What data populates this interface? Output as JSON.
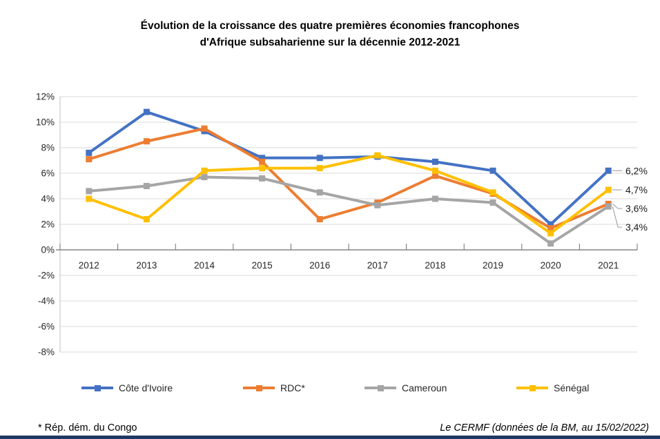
{
  "title": {
    "line1": "Évolution de la croissance des quatre premières économies francophones",
    "line2": "d'Afrique subsaharienne sur la décennie 2012-2021"
  },
  "chart_data": {
    "type": "line",
    "categories": [
      "2012",
      "2013",
      "2014",
      "2015",
      "2016",
      "2017",
      "2018",
      "2019",
      "2020",
      "2021"
    ],
    "series": [
      {
        "name": "Côte d'Ivoire",
        "color": "#4472C4",
        "values": [
          7.6,
          10.8,
          9.3,
          7.2,
          7.2,
          7.3,
          6.9,
          6.2,
          2.0,
          6.2
        ],
        "end_label": "6,2%"
      },
      {
        "name": "RDC*",
        "color": "#ED7D31",
        "values": [
          7.1,
          8.5,
          9.5,
          6.9,
          2.4,
          3.7,
          5.8,
          4.4,
          1.7,
          3.6
        ],
        "end_label": "3,6%"
      },
      {
        "name": "Cameroun",
        "color": "#A5A5A5",
        "values": [
          4.6,
          5.0,
          5.7,
          5.6,
          4.5,
          3.5,
          4.0,
          3.7,
          0.5,
          3.4
        ],
        "end_label": "3,4%"
      },
      {
        "name": "Sénégal",
        "color": "#FFC000",
        "values": [
          4.0,
          2.4,
          6.2,
          6.4,
          6.4,
          7.4,
          6.2,
          4.5,
          1.3,
          4.7
        ],
        "end_label": "4,7%"
      }
    ],
    "y_axis": {
      "min": -8,
      "max": 12,
      "step": 2,
      "tick_suffix": "%",
      "tick_labels": [
        "12%",
        "10%",
        "8%",
        "6%",
        "4%",
        "2%",
        "0%",
        "-2%",
        "-4%",
        "-6%",
        "-8%"
      ]
    },
    "x_axis": {
      "tick_labels": [
        "2012",
        "2013",
        "2014",
        "2015",
        "2016",
        "2017",
        "2018",
        "2019",
        "2020",
        "2021"
      ]
    },
    "grid": true,
    "legend_position": "bottom"
  },
  "footer": {
    "note": "* Rép. dém. du Congo",
    "source": "Le CERMF (données de la BM, au 15/02/2022)"
  },
  "colors": {
    "grid": "#D9D9D9",
    "axis_zero": "#6E6E6E",
    "axis_left": "#BFBFBF",
    "leader": "#A6A6A6",
    "tick_text": "#262626",
    "bottom_bar": "#1F3864"
  }
}
